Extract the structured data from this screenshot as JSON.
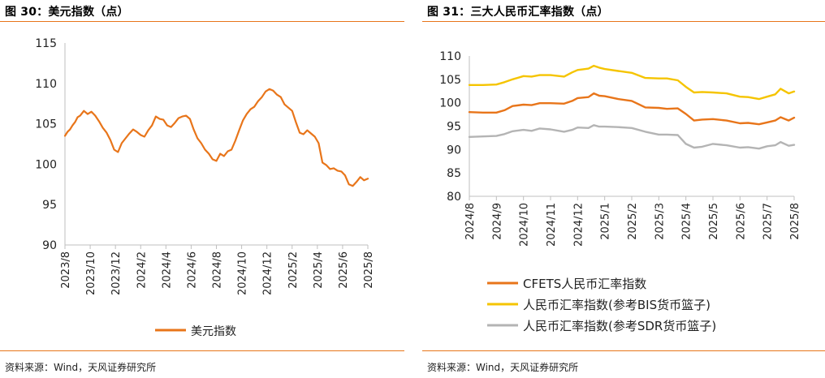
{
  "left": {
    "title": "图 30：美元指数（点）",
    "source": "资料来源：Wind，天风证券研究所",
    "chart_data": {
      "type": "line",
      "title": "美元指数（点）",
      "ylim": [
        90,
        115
      ],
      "yticks": [
        90,
        95,
        100,
        105,
        110,
        115
      ],
      "xlim": [
        0,
        24
      ],
      "tick_labels": [
        "2023/8",
        "2023/10",
        "2023/12",
        "2024/2",
        "2024/4",
        "2024/6",
        "2024/8",
        "2024/10",
        "2024/12",
        "2025/2",
        "2025/4",
        "2025/6",
        "2025/8"
      ],
      "tick_positions": [
        0,
        2,
        4,
        6,
        8,
        10,
        12,
        14,
        16,
        18,
        20,
        22,
        24
      ],
      "series": [
        {
          "name": "美元指数",
          "color": "#e8751a",
          "x": [
            0,
            0.2,
            0.4,
            0.6,
            0.8,
            1.0,
            1.2,
            1.5,
            1.8,
            2.1,
            2.4,
            2.7,
            3.0,
            3.3,
            3.6,
            3.9,
            4.2,
            4.5,
            4.8,
            5.1,
            5.4,
            5.7,
            6.0,
            6.3,
            6.6,
            6.9,
            7.2,
            7.5,
            7.8,
            8.1,
            8.4,
            8.7,
            9.0,
            9.3,
            9.6,
            9.9,
            10.2,
            10.5,
            10.8,
            11.1,
            11.4,
            11.7,
            12.0,
            12.3,
            12.6,
            12.9,
            13.2,
            13.5,
            13.8,
            14.1,
            14.4,
            14.7,
            15.0,
            15.3,
            15.6,
            15.9,
            16.2,
            16.5,
            16.8,
            17.1,
            17.4,
            17.7,
            18.0,
            18.3,
            18.6,
            18.9,
            19.2,
            19.5,
            19.8,
            20.1,
            20.4,
            20.7,
            21.0,
            21.3,
            21.6,
            21.9,
            22.2,
            22.5,
            22.8,
            23.1,
            23.4,
            23.7,
            24.0
          ],
          "values": [
            103.5,
            104.0,
            104.3,
            104.8,
            105.2,
            105.8,
            106.0,
            106.6,
            106.2,
            106.5,
            106.0,
            105.3,
            104.5,
            103.9,
            103.0,
            101.8,
            101.5,
            102.6,
            103.2,
            103.8,
            104.3,
            104.0,
            103.6,
            103.4,
            104.2,
            104.8,
            105.9,
            105.6,
            105.5,
            104.8,
            104.6,
            105.1,
            105.7,
            105.9,
            106.0,
            105.6,
            104.3,
            103.2,
            102.6,
            101.8,
            101.3,
            100.6,
            100.4,
            101.3,
            101.0,
            101.6,
            101.8,
            102.9,
            104.2,
            105.4,
            106.2,
            106.8,
            107.1,
            107.8,
            108.3,
            109.0,
            109.3,
            109.1,
            108.6,
            108.3,
            107.4,
            107.0,
            106.6,
            105.2,
            103.9,
            103.7,
            104.2,
            103.8,
            103.4,
            102.6,
            100.2,
            99.9,
            99.4,
            99.5,
            99.2,
            99.1,
            98.6,
            97.5,
            97.3,
            97.8,
            98.4,
            98.0,
            98.2
          ]
        }
      ],
      "legend": [
        "美元指数"
      ],
      "legend_position": "bottom"
    }
  },
  "right": {
    "title": "图 31：三大人民币汇率指数（点）",
    "source": "资料来源：Wind，天风证券研究所",
    "chart_data": {
      "type": "line",
      "title": "三大人民币汇率指数（点）",
      "ylim": [
        80,
        110
      ],
      "yticks": [
        80,
        85,
        90,
        95,
        100,
        105,
        110
      ],
      "xlim": [
        0,
        12
      ],
      "tick_labels": [
        "2024/8",
        "2024/9",
        "2024/10",
        "2024/11",
        "2024/12",
        "2025/1",
        "2025/2",
        "2025/3",
        "2025/4",
        "2025/5",
        "2025/6",
        "2025/7",
        "2025/8"
      ],
      "tick_positions": [
        0,
        1,
        2,
        3,
        4,
        5,
        6,
        7,
        8,
        9,
        10,
        11,
        12
      ],
      "series": [
        {
          "name": "CFETS人民币汇率指数",
          "color": "#e8751a",
          "x": [
            0,
            0.5,
            1.0,
            1.3,
            1.6,
            2.0,
            2.3,
            2.6,
            3.0,
            3.5,
            3.8,
            4.0,
            4.4,
            4.6,
            4.8,
            5.0,
            5.5,
            6.0,
            6.5,
            7.0,
            7.3,
            7.7,
            8.0,
            8.3,
            8.6,
            9.0,
            9.5,
            10.0,
            10.3,
            10.7,
            11.0,
            11.3,
            11.5,
            11.8,
            12.0
          ],
          "values": [
            98.0,
            97.9,
            97.9,
            98.4,
            99.3,
            99.6,
            99.5,
            99.9,
            99.9,
            99.8,
            100.4,
            101.0,
            101.2,
            102.0,
            101.5,
            101.4,
            100.8,
            100.4,
            99.0,
            98.9,
            98.7,
            98.8,
            97.6,
            96.2,
            96.4,
            96.5,
            96.2,
            95.6,
            95.7,
            95.4,
            95.8,
            96.2,
            96.9,
            96.2,
            96.8
          ]
        },
        {
          "name": "人民币汇率指数(参考BIS货币篮子)",
          "color": "#f5c400",
          "x": [
            0,
            0.5,
            1.0,
            1.3,
            1.6,
            2.0,
            2.3,
            2.6,
            3.0,
            3.5,
            3.8,
            4.0,
            4.4,
            4.6,
            4.8,
            5.0,
            5.5,
            6.0,
            6.5,
            7.0,
            7.3,
            7.7,
            8.0,
            8.3,
            8.6,
            9.0,
            9.5,
            10.0,
            10.3,
            10.7,
            11.0,
            11.3,
            11.5,
            11.8,
            12.0
          ],
          "values": [
            103.8,
            103.8,
            103.9,
            104.4,
            105.0,
            105.7,
            105.6,
            105.9,
            105.9,
            105.6,
            106.5,
            107.0,
            107.3,
            107.9,
            107.5,
            107.2,
            106.8,
            106.4,
            105.3,
            105.2,
            105.2,
            104.8,
            103.4,
            102.2,
            102.3,
            102.2,
            102.0,
            101.3,
            101.2,
            100.8,
            101.3,
            101.8,
            103.0,
            102.0,
            102.4
          ]
        },
        {
          "name": "人民币汇率指数(参考SDR货币篮子)",
          "color": "#b4b4b4",
          "x": [
            0,
            0.5,
            1.0,
            1.3,
            1.6,
            2.0,
            2.3,
            2.6,
            3.0,
            3.5,
            3.8,
            4.0,
            4.4,
            4.6,
            4.8,
            5.0,
            5.5,
            6.0,
            6.5,
            7.0,
            7.3,
            7.7,
            8.0,
            8.3,
            8.6,
            9.0,
            9.5,
            10.0,
            10.3,
            10.7,
            11.0,
            11.3,
            11.5,
            11.8,
            12.0
          ],
          "values": [
            92.7,
            92.8,
            92.9,
            93.3,
            93.9,
            94.2,
            94.0,
            94.5,
            94.3,
            93.8,
            94.2,
            94.7,
            94.6,
            95.2,
            94.9,
            94.9,
            94.8,
            94.6,
            93.8,
            93.2,
            93.2,
            93.1,
            91.2,
            90.4,
            90.6,
            91.2,
            90.9,
            90.4,
            90.5,
            90.2,
            90.7,
            90.9,
            91.6,
            90.8,
            91.0
          ]
        }
      ],
      "legend": [
        "CFETS人民币汇率指数",
        "人民币汇率指数(参考BIS货币篮子)",
        "人民币汇率指数(参考SDR货币篮子)"
      ],
      "legend_position": "bottom"
    }
  }
}
